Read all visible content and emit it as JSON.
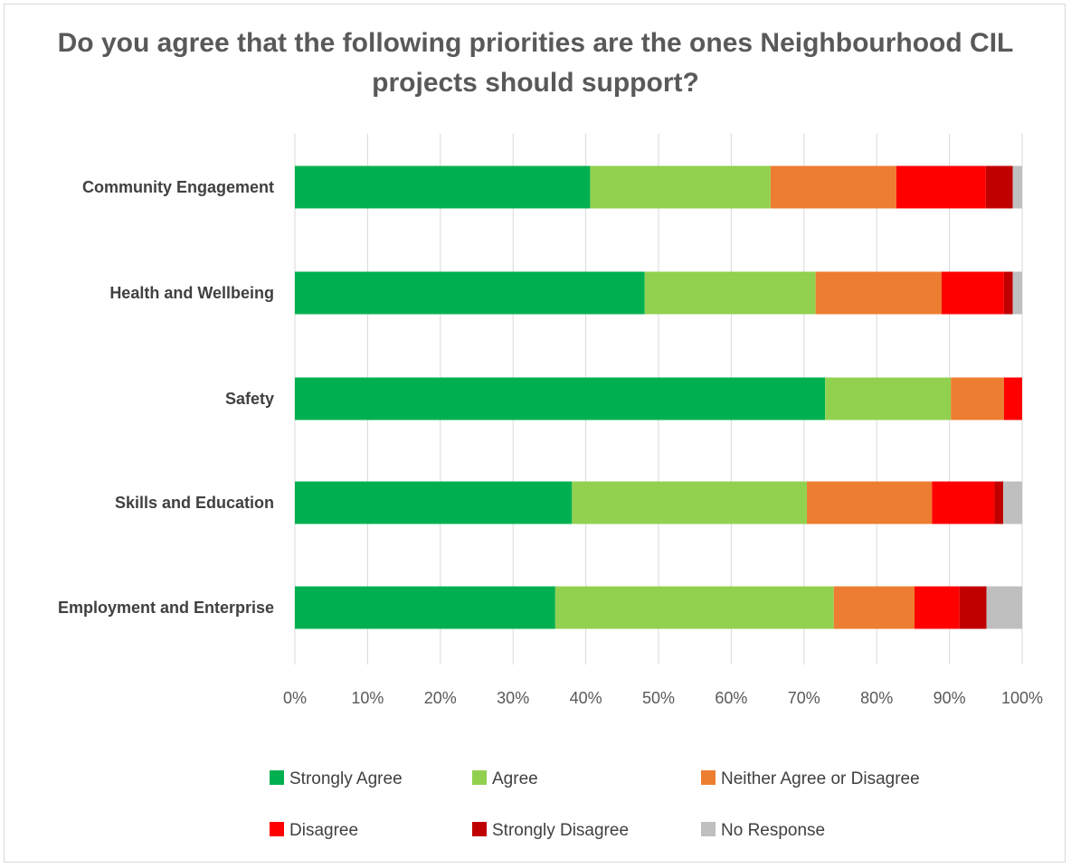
{
  "chart_data": {
    "type": "bar",
    "orientation": "horizontal",
    "stacked": "percent",
    "title": "Do you agree that the following priorities are the ones Neighbourhood CIL projects should support?",
    "categories": [
      "Community Engagement",
      "Health and Wellbeing",
      "Safety",
      "Skills and Education",
      "Employment and Enterprise"
    ],
    "series": [
      {
        "name": "Strongly Agree",
        "color": "#00b050",
        "values": [
          40.6,
          48.1,
          72.9,
          38.1,
          35.8
        ]
      },
      {
        "name": "Agree",
        "color": "#92d050",
        "values": [
          24.8,
          23.5,
          17.3,
          32.3,
          38.3
        ]
      },
      {
        "name": "Neither Agree or Disagree",
        "color": "#ed7d31",
        "values": [
          17.3,
          17.3,
          7.3,
          17.2,
          11.1
        ]
      },
      {
        "name": "Disagree",
        "color": "#ff0000",
        "values": [
          12.3,
          8.6,
          2.5,
          8.6,
          6.2
        ]
      },
      {
        "name": "Strongly Disagree",
        "color": "#c00000",
        "values": [
          3.7,
          1.2,
          0.0,
          1.2,
          3.7
        ]
      },
      {
        "name": "No Response",
        "color": "#bfbfbf",
        "values": [
          1.3,
          1.3,
          0.0,
          2.6,
          4.9
        ]
      }
    ],
    "xlim": [
      0,
      100
    ],
    "x_ticks": [
      "0%",
      "10%",
      "20%",
      "30%",
      "40%",
      "50%",
      "60%",
      "70%",
      "80%",
      "90%",
      "100%"
    ],
    "grid": "vertical",
    "legend": "bottom"
  }
}
